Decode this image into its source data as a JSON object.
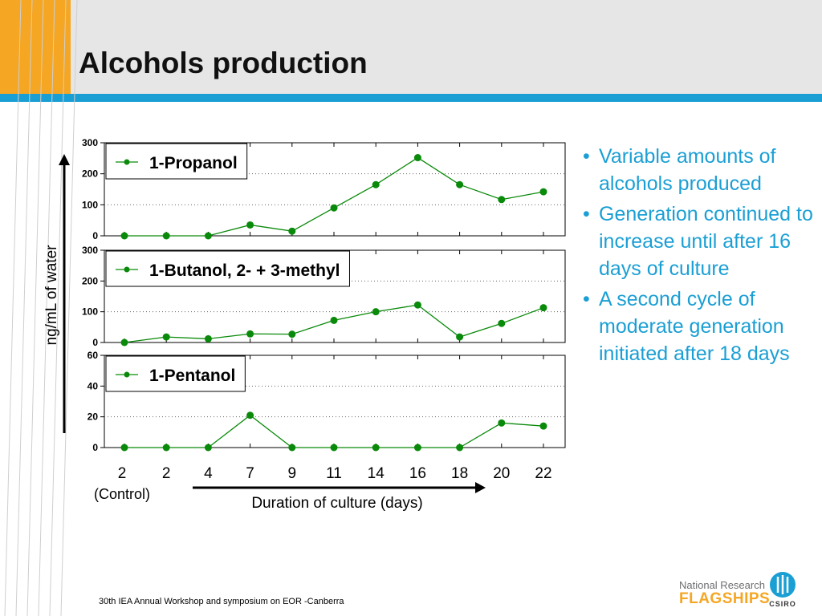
{
  "slide": {
    "title": "Alcohols production",
    "footer": "30th IEA Annual Workshop and symposium on EOR -Canberra",
    "logo_line1": "National Research",
    "logo_line2": "FLAGSHIPS",
    "logo_org": "CSIRO",
    "bullets": [
      "Variable amounts of alcohols produced",
      "Generation continued to increase until after 16 days of culture",
      "A second cycle of moderate generation initiated after 18 days"
    ],
    "colors": {
      "accent_orange": "#f5a623",
      "accent_blue": "#1a9fd4",
      "series_green": "#0a8a0a",
      "header_bg": "#e6e6e6"
    }
  },
  "chart_data": {
    "type": "line",
    "ylabel": "ng/mL of water",
    "xlabel": "Duration of culture (days)",
    "control_label": "(Control)",
    "x_categories": [
      "2",
      "2",
      "4",
      "7",
      "9",
      "11",
      "14",
      "16",
      "18",
      "20",
      "22"
    ],
    "grid": "dotted horizontal",
    "panels": [
      {
        "legend": "1-Propanol",
        "ylim": [
          0,
          300
        ],
        "yticks": [
          0,
          100,
          200,
          300
        ],
        "values": [
          0,
          0,
          0,
          35,
          15,
          90,
          165,
          252,
          165,
          117,
          142
        ]
      },
      {
        "legend": "1-Butanol, 2- + 3-methyl",
        "ylim": [
          0,
          300
        ],
        "yticks": [
          0,
          100,
          200,
          300
        ],
        "values": [
          0,
          18,
          12,
          28,
          27,
          72,
          100,
          122,
          18,
          62,
          113
        ]
      },
      {
        "legend": "1-Pentanol",
        "ylim": [
          0,
          60
        ],
        "yticks": [
          0,
          20,
          40,
          60
        ],
        "values": [
          0,
          0,
          0,
          21,
          0,
          0,
          0,
          0,
          0,
          16,
          14
        ]
      }
    ]
  }
}
